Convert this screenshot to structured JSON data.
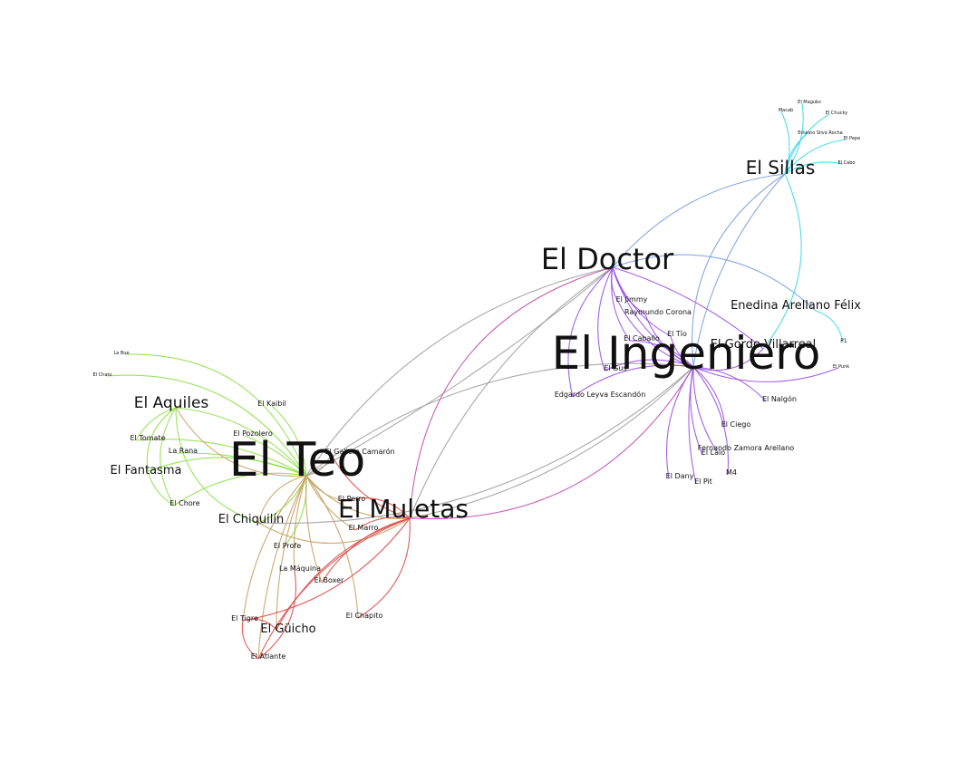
{
  "colors": {
    "green": "#8ee04a",
    "tan": "#c8a060",
    "red": "#e04848",
    "purple": "#9a50e6",
    "gray": "#a0a0a0",
    "magenta": "#c050b0",
    "blue": "#7aa0e0",
    "cyan": "#40d8e8"
  },
  "nodes": {
    "teo": {
      "label": "El Teo"
    },
    "ingeniero": {
      "label": "El Ingeniero"
    },
    "doctor": {
      "label": "El Doctor"
    },
    "muletas": {
      "label": "El Muletas"
    },
    "sillas": {
      "label": "El Sillas"
    },
    "aquiles": {
      "label": "El Aquiles"
    },
    "fantasma": {
      "label": "El Fantasma"
    },
    "chiquilin": {
      "label": "El Chiquilín"
    },
    "guicho": {
      "label": "El Güicho"
    },
    "enedina": {
      "label": "Enedina Arellano Félix"
    },
    "gordo": {
      "label": "El Gordo Villarreal"
    },
    "kaibil": {
      "label": "El Kaibil"
    },
    "pozolero": {
      "label": "El Pozolero"
    },
    "tomate": {
      "label": "El Tomate"
    },
    "larana": {
      "label": "La Rana"
    },
    "chore": {
      "label": "El Chore"
    },
    "profe": {
      "label": "El Profe"
    },
    "maquina": {
      "label": "La Máquina"
    },
    "boxer": {
      "label": "El Boxer"
    },
    "marro": {
      "label": "El Marro"
    },
    "gallero": {
      "label": "El Gallero Camarón"
    },
    "perro": {
      "label": "El Perro"
    },
    "tigre": {
      "label": "El Tigre"
    },
    "atlante": {
      "label": "El Atlante"
    },
    "chapito": {
      "label": "El Chapito"
    },
    "jimmy": {
      "label": "El Jimmy"
    },
    "raymundo": {
      "label": "Raymundo Corona"
    },
    "tio": {
      "label": "El Tío"
    },
    "caballo": {
      "label": "El Caballo"
    },
    "gus": {
      "label": "El Gus"
    },
    "edgardo": {
      "label": "Edgardo Leyva Escandón"
    },
    "nalgon": {
      "label": "El Nalgón"
    },
    "ciego": {
      "label": "El Ciego"
    },
    "fernando": {
      "label": "Fernando Zamora Arellano"
    },
    "lalo": {
      "label": "El Lalo"
    },
    "dany": {
      "label": "El Dany"
    },
    "pit": {
      "label": "El Pit"
    },
    "m4": {
      "label": "M4"
    },
    "p1": {
      "label": "P1"
    },
    "punk": {
      "label": "El Punk"
    },
    "labue": {
      "label": "La Bue"
    },
    "elchato": {
      "label": "El Chato"
    },
    "elmagubs": {
      "label": "El Magubs"
    },
    "macab": {
      "label": "Macab"
    },
    "chucky": {
      "label": "El Chucky"
    },
    "ernesto": {
      "label": "Ernesto Silva Rocha"
    },
    "pepe": {
      "label": "El Pepe"
    },
    "cabo": {
      "label": "El Cabo"
    }
  }
}
